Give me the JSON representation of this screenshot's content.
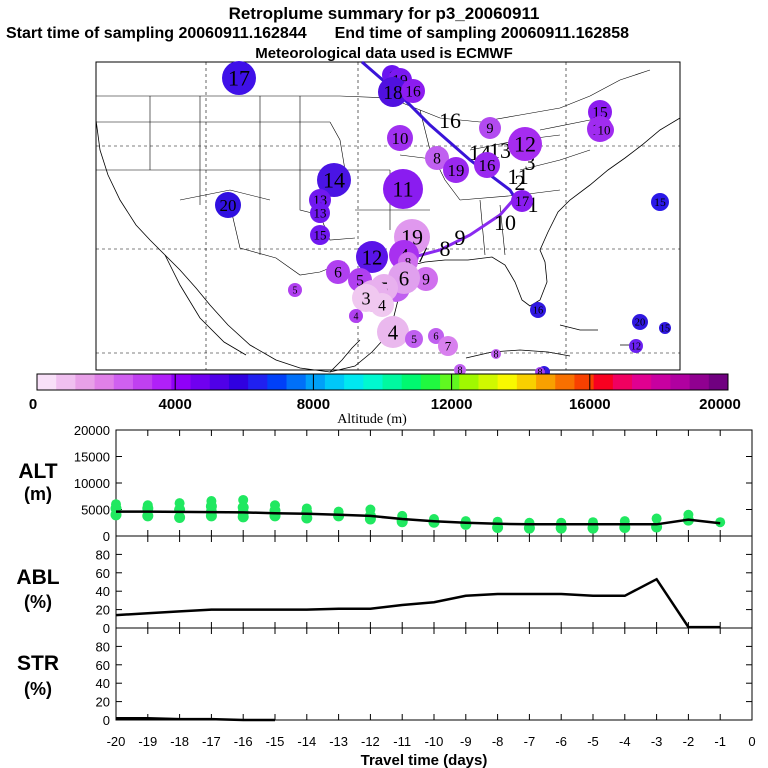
{
  "header": {
    "title": "Retroplume summary for p3_20060911",
    "start_label": "Start time of sampling 20060911.162844",
    "end_label": "End time of sampling 20060911.162858",
    "met_label": "Meteorological data used is ECMWF"
  },
  "colorbar": {
    "label": "Altitude (m)",
    "ticks": [
      "0",
      "4000",
      "8000",
      "12000",
      "16000",
      "20000"
    ],
    "colors": [
      "#f8e0f8",
      "#f0c0f0",
      "#e8a0e8",
      "#e080e8",
      "#d060f0",
      "#c040f0",
      "#b020f8",
      "#9000f8",
      "#7000f0",
      "#5000e8",
      "#3000e0",
      "#2020f0",
      "#0040f8",
      "#0070f8",
      "#00a0f8",
      "#00c8f8",
      "#00e8f0",
      "#00f8d0",
      "#00f8a0",
      "#00f870",
      "#20f840",
      "#60f820",
      "#a0f800",
      "#d0f800",
      "#f8f800",
      "#f8d000",
      "#f8a000",
      "#f87000",
      "#f84000",
      "#f80020",
      "#f00060",
      "#e00090",
      "#c800a0",
      "#b000a0",
      "#900090",
      "#700080"
    ]
  },
  "map": {
    "region": "North America / Gulf of Mexico",
    "points": [
      {
        "day": "17",
        "size": 17,
        "color": "#3f10e8"
      },
      {
        "day": "1",
        "size": 10,
        "color": "#6a14f0"
      },
      {
        "day": "19",
        "size": 12,
        "color": "#7a18f0"
      },
      {
        "day": "18",
        "size": 15,
        "color": "#5010e0"
      },
      {
        "day": "16",
        "size": 12,
        "color": "#8c1cf0"
      },
      {
        "day": "15",
        "size": 12,
        "color": "#8c1cf0"
      },
      {
        "day": "10",
        "size": 13,
        "color": "#a030f0"
      },
      {
        "day": "9",
        "size": 11,
        "color": "#b24af0"
      },
      {
        "day": "12",
        "size": 17,
        "color": "#a62cf0"
      },
      {
        "day": "11",
        "size": 13,
        "color": "#a02cf0"
      },
      {
        "day": "10",
        "size": 10,
        "color": "#a02cf0"
      },
      {
        "day": "8",
        "size": 12,
        "color": "#c060f0"
      },
      {
        "day": "19",
        "size": 13,
        "color": "#9a28f0"
      },
      {
        "day": "16",
        "size": 13,
        "color": "#9a28f0"
      },
      {
        "day": "14",
        "size": 17,
        "color": "#4a14e4"
      },
      {
        "day": "11",
        "size": 20,
        "color": "#8a1cf0"
      },
      {
        "day": "20",
        "size": 13,
        "color": "#3010e0"
      },
      {
        "day": "17",
        "size": 11,
        "color": "#8a1cf0"
      },
      {
        "day": "13",
        "size": 11,
        "color": "#7018f0"
      },
      {
        "day": "13",
        "size": 10,
        "color": "#7018f0"
      },
      {
        "day": "15",
        "size": 10,
        "color": "#7018f0"
      },
      {
        "day": "15",
        "size": 9,
        "color": "#2a18e8"
      },
      {
        "day": "19",
        "size": 18,
        "color": "#e098ee"
      },
      {
        "day": "12",
        "size": 16,
        "color": "#5a14e8"
      },
      {
        "day": "4",
        "size": 15,
        "color": "#a830f0"
      },
      {
        "day": "8",
        "size": 10,
        "color": "#d070ee"
      },
      {
        "day": "9",
        "size": 12,
        "color": "#d070ee"
      },
      {
        "day": "6",
        "size": 12,
        "color": "#b040f0"
      },
      {
        "day": "5",
        "size": 12,
        "color": "#b040f0"
      },
      {
        "day": "7",
        "size": 14,
        "color": "#c060f0"
      },
      {
        "day": "6",
        "size": 16,
        "color": "#e0a0ee"
      },
      {
        "day": "5",
        "size": 14,
        "color": "#e8b0ee"
      },
      {
        "day": "6",
        "size": 16,
        "color": "#e8b0ee"
      },
      {
        "day": "3",
        "size": 14,
        "color": "#f0c8f0"
      },
      {
        "day": "4",
        "size": 12,
        "color": "#f0c8f0"
      },
      {
        "day": "5",
        "size": 7,
        "color": "#b040f0"
      },
      {
        "day": "4",
        "size": 7,
        "color": "#b040f0"
      },
      {
        "day": "4",
        "size": 16,
        "color": "#eab8ee"
      },
      {
        "day": "5",
        "size": 9,
        "color": "#c060f0"
      },
      {
        "day": "6",
        "size": 8,
        "color": "#c060f0"
      },
      {
        "day": "7",
        "size": 10,
        "color": "#d880ee"
      },
      {
        "day": "8",
        "size": 6,
        "color": "#c060f0"
      },
      {
        "day": "16",
        "size": 8,
        "color": "#3018e0"
      },
      {
        "day": "20",
        "size": 8,
        "color": "#3018e0"
      },
      {
        "day": "12",
        "size": 7,
        "color": "#6a20f0"
      },
      {
        "day": "15",
        "size": 6,
        "color": "#3018e0"
      },
      {
        "day": "1",
        "size": 6,
        "color": "#3018e0"
      },
      {
        "day": "8",
        "size": 5,
        "color": "#c060f0"
      },
      {
        "day": "8",
        "size": 5,
        "color": "#a040f0"
      }
    ],
    "track_labels": [
      "16",
      "14",
      "13",
      "11",
      "10",
      "9",
      "8",
      "7",
      "3",
      "2",
      "1"
    ]
  },
  "chart_data": [
    {
      "type": "line",
      "title": "Retroplume summary for p3_20060911",
      "panel": "ALT",
      "ylabel": "ALT\n(m)",
      "xlabel": "Travel time (days)",
      "x": [
        -20,
        -19,
        -18,
        -17,
        -16,
        -15,
        -14,
        -13,
        -12,
        -11,
        -10,
        -9,
        -8,
        -7,
        -6,
        -5,
        -4,
        -3,
        -2,
        -1
      ],
      "xlim": [
        -20,
        0
      ],
      "ylim": [
        0,
        20000
      ],
      "yticks": [
        "0",
        "5000",
        "10000",
        "15000",
        "20000"
      ],
      "series": [
        {
          "name": "mean altitude",
          "values": [
            4600,
            4600,
            4550,
            4500,
            4450,
            4300,
            4200,
            4000,
            3800,
            3200,
            2800,
            2500,
            2300,
            2200,
            2200,
            2200,
            2200,
            2200,
            3100,
            2400
          ]
        }
      ],
      "scatter": [
        {
          "x": -20,
          "y": [
            6000,
            5200,
            4000
          ]
        },
        {
          "x": -19,
          "y": [
            5800,
            5200,
            3800
          ]
        },
        {
          "x": -18,
          "y": [
            6200,
            5000,
            3500
          ]
        },
        {
          "x": -17,
          "y": [
            6600,
            5600,
            4600,
            3800
          ]
        },
        {
          "x": -16,
          "y": [
            6800,
            5400,
            4400,
            3600
          ]
        },
        {
          "x": -15,
          "y": [
            5800,
            4800,
            3800
          ]
        },
        {
          "x": -14,
          "y": [
            5200,
            4400,
            3400
          ]
        },
        {
          "x": -13,
          "y": [
            4600,
            3800
          ]
        },
        {
          "x": -12,
          "y": [
            5000,
            3800,
            3200
          ]
        },
        {
          "x": -11,
          "y": [
            3800,
            3000,
            2700
          ]
        },
        {
          "x": -10,
          "y": [
            3200,
            2600
          ]
        },
        {
          "x": -9,
          "y": [
            2800,
            2200
          ]
        },
        {
          "x": -8,
          "y": [
            2700,
            1600
          ]
        },
        {
          "x": -7,
          "y": [
            2500,
            1500
          ]
        },
        {
          "x": -6,
          "y": [
            2500,
            1500
          ]
        },
        {
          "x": -5,
          "y": [
            2600,
            1500
          ]
        },
        {
          "x": -4,
          "y": [
            2800,
            1600
          ]
        },
        {
          "x": -3,
          "y": [
            3300,
            1700
          ]
        },
        {
          "x": -2,
          "y": [
            4000,
            3000
          ]
        },
        {
          "x": -1,
          "y": [
            2600
          ]
        }
      ]
    },
    {
      "type": "line",
      "panel": "ABL",
      "ylabel": "ABL\n(%)",
      "x": [
        -20,
        -19,
        -18,
        -17,
        -16,
        -15,
        -14,
        -13,
        -12,
        -11,
        -10,
        -9,
        -8,
        -7,
        -6,
        -5,
        -4,
        -3,
        -2,
        -1
      ],
      "xlim": [
        -20,
        0
      ],
      "ylim": [
        0,
        100
      ],
      "yticks": [
        "0",
        "20",
        "40",
        "60",
        "80"
      ],
      "series": [
        {
          "name": "ABL fraction",
          "values": [
            14,
            16,
            18,
            20,
            20,
            20,
            20,
            21,
            21,
            25,
            28,
            35,
            37,
            37,
            37,
            35,
            35,
            53,
            1,
            1
          ]
        }
      ]
    },
    {
      "type": "line",
      "panel": "STR",
      "ylabel": "STR\n(%)",
      "xlabel": "Travel time (days)",
      "x": [
        -20,
        -19,
        -18,
        -17,
        -16,
        -15
      ],
      "xlim": [
        -20,
        0
      ],
      "ylim": [
        0,
        100
      ],
      "yticks": [
        "0",
        "20",
        "40",
        "60",
        "80"
      ],
      "xticks": [
        "-20",
        "-19",
        "-18",
        "-17",
        "-16",
        "-15",
        "-14",
        "-13",
        "-12",
        "-11",
        "-10",
        "-9",
        "-8",
        "-7",
        "-6",
        "-5",
        "-4",
        "-3",
        "-2",
        "-1",
        "0"
      ],
      "series": [
        {
          "name": "stratospheric fraction",
          "values": [
            2,
            2,
            1,
            1,
            0,
            0
          ]
        }
      ]
    }
  ]
}
